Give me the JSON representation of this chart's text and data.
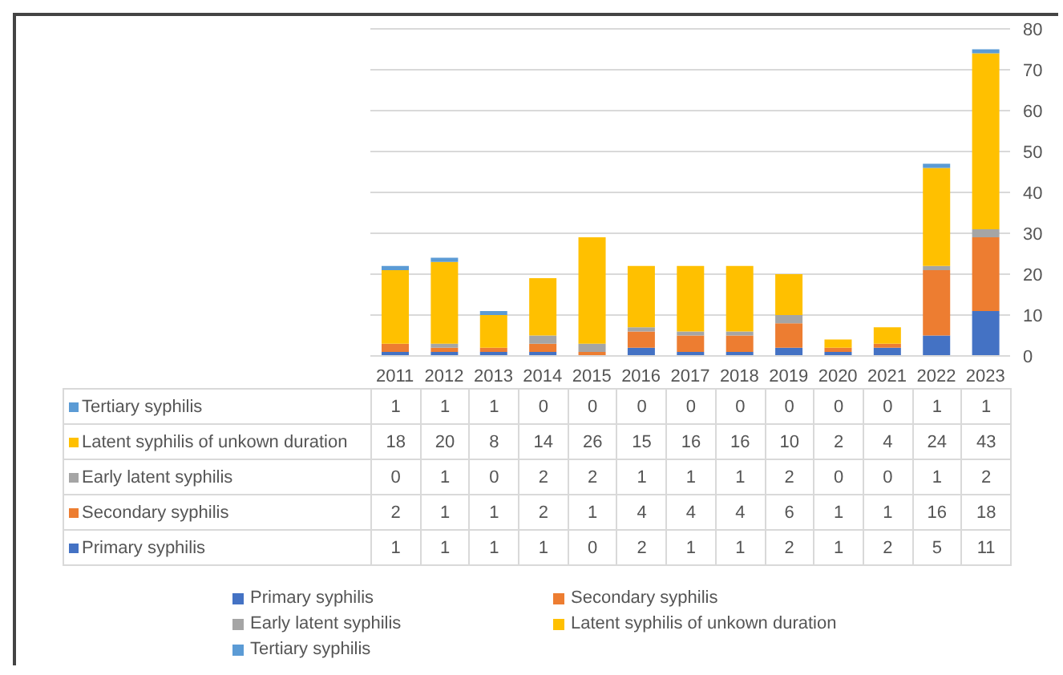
{
  "chart_data": {
    "type": "bar",
    "stacked": true,
    "categories": [
      "2011",
      "2012",
      "2013",
      "2014",
      "2015",
      "2016",
      "2017",
      "2018",
      "2019",
      "2020",
      "2021",
      "2022",
      "2023"
    ],
    "series": [
      {
        "name": "Primary syphilis",
        "color": "#4472c4",
        "values": [
          1,
          1,
          1,
          1,
          0,
          2,
          1,
          1,
          2,
          1,
          2,
          5,
          11
        ]
      },
      {
        "name": "Secondary syphilis",
        "color": "#ed7d31",
        "values": [
          2,
          1,
          1,
          2,
          1,
          4,
          4,
          4,
          6,
          1,
          1,
          16,
          18
        ]
      },
      {
        "name": "Early latent syphilis",
        "color": "#a5a5a5",
        "values": [
          0,
          1,
          0,
          2,
          2,
          1,
          1,
          1,
          2,
          0,
          0,
          1,
          2
        ]
      },
      {
        "name": "Latent syphilis of unkown duration",
        "color": "#ffc000",
        "values": [
          18,
          20,
          8,
          14,
          26,
          15,
          16,
          16,
          10,
          2,
          4,
          24,
          43
        ]
      },
      {
        "name": "Tertiary syphilis",
        "color": "#5b9bd5",
        "values": [
          1,
          1,
          1,
          0,
          0,
          0,
          0,
          0,
          0,
          0,
          0,
          1,
          1
        ]
      }
    ],
    "ylim": [
      0,
      80
    ],
    "yticks": [
      0,
      10,
      20,
      30,
      40,
      50,
      60,
      70,
      80
    ],
    "grid": "y",
    "legend": "bottom",
    "data_labels": true
  }
}
